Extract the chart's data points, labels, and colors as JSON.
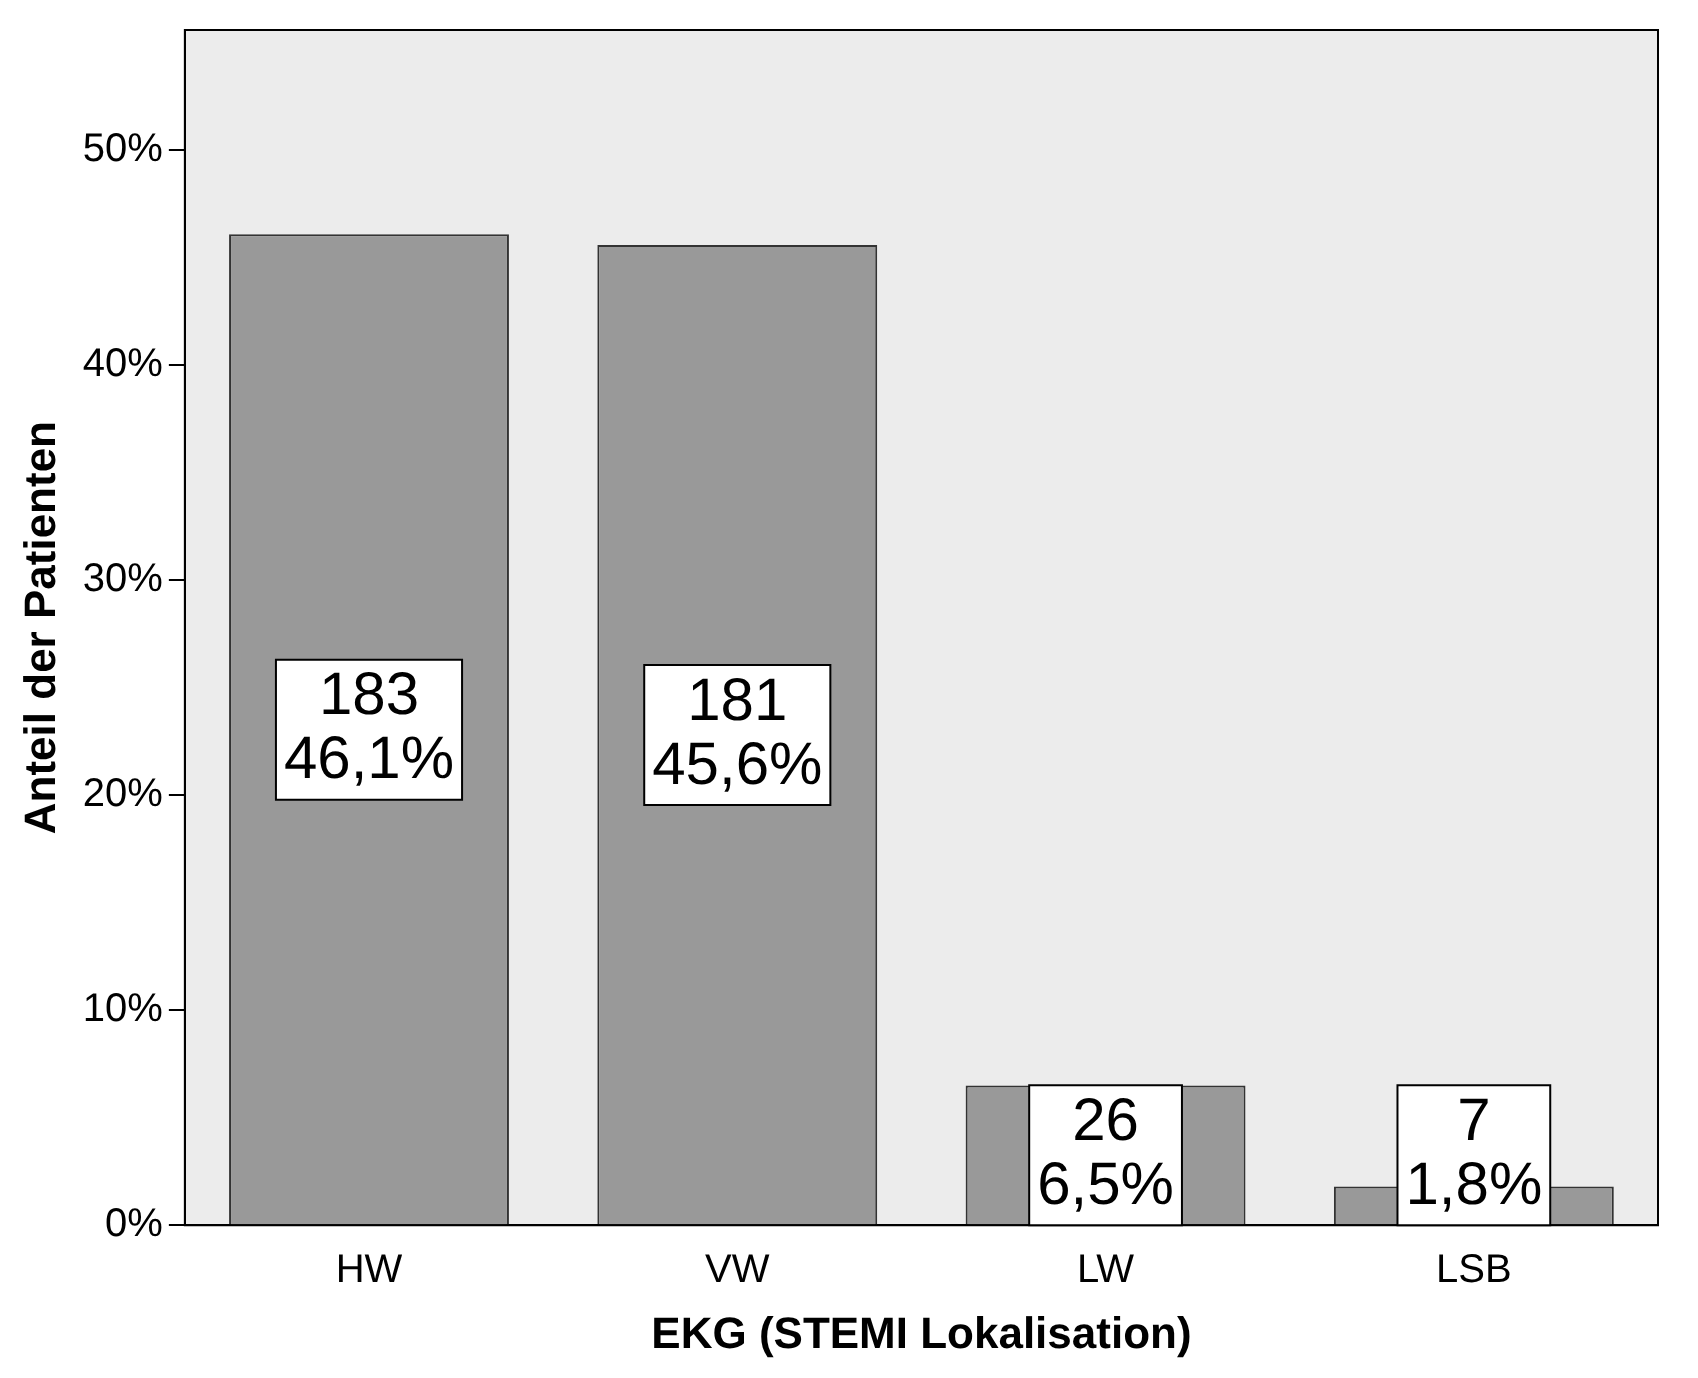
{
  "chart_data": {
    "type": "bar",
    "xlabel": "EKG (STEMI Lokalisation)",
    "ylabel": "Anteil der Patienten",
    "categories": [
      "HW",
      "VW",
      "LW",
      "LSB"
    ],
    "values": [
      46.1,
      45.6,
      6.5,
      1.8
    ],
    "value_labels": [
      "183\n46,1%",
      "181\n45,6%",
      "26\n6,5%",
      "7\n1,8%"
    ],
    "color": "#999999",
    "ylim": [
      0,
      55.6
    ],
    "yticks": [
      {
        "value": 0,
        "label": "0%"
      },
      {
        "value": 10,
        "label": "10%"
      },
      {
        "value": 20,
        "label": "20%"
      },
      {
        "value": 30,
        "label": "30%"
      },
      {
        "value": 40,
        "label": "40%"
      },
      {
        "value": 50,
        "label": "50%"
      }
    ],
    "grid": false,
    "legend": false
  }
}
